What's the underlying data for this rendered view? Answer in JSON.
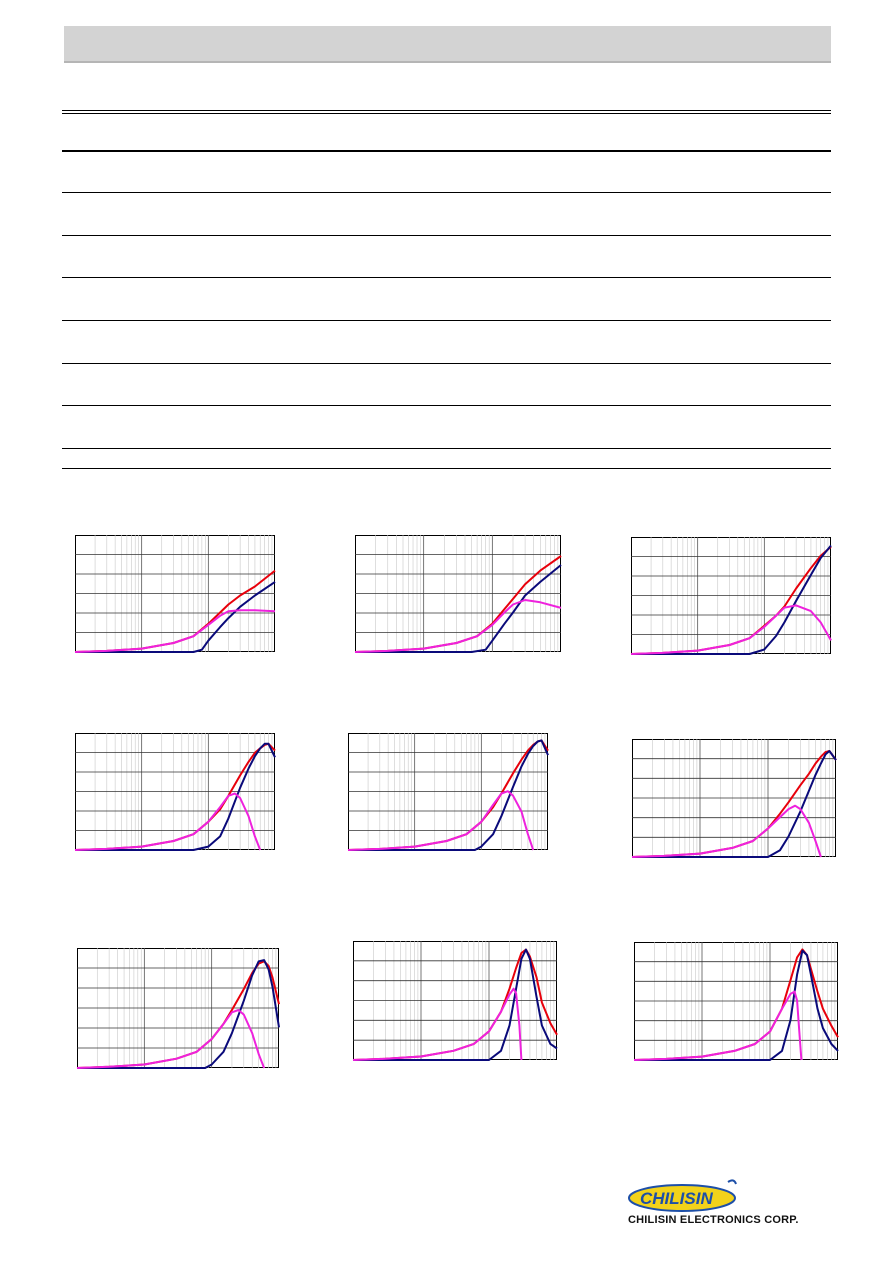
{
  "brand": {
    "logo_text": "CHILISIN",
    "company_name": "CHILISIN ELECTRONICS CORP.",
    "colors": {
      "blue": "#1d4fa8",
      "yellow": "#f2d21a"
    }
  },
  "series_colors": {
    "Z": "#e8000b",
    "R": "#0a0a7a",
    "X": "#ee22dd"
  },
  "chart_data": [
    {
      "type": "line",
      "xscale": "log",
      "xlim": [
        1,
        1000
      ],
      "ylim": [
        0,
        100
      ],
      "series": [
        {
          "color_key": "Z",
          "x": [
            1,
            3,
            10,
            30,
            60,
            100,
            150,
            200,
            300,
            500,
            1000
          ],
          "y": [
            0,
            1,
            3,
            8,
            14,
            25,
            35,
            42,
            50,
            58,
            72
          ]
        },
        {
          "color_key": "R",
          "x": [
            1,
            40,
            60,
            80,
            100,
            150,
            200,
            300,
            500,
            1000
          ],
          "y": [
            0,
            0,
            0,
            2,
            10,
            22,
            30,
            40,
            50,
            62
          ]
        },
        {
          "color_key": "X",
          "x": [
            1,
            3,
            10,
            30,
            60,
            100,
            150,
            200,
            300,
            500,
            1000
          ],
          "y": [
            0,
            1,
            3,
            8,
            14,
            24,
            32,
            36,
            37,
            37,
            36
          ]
        }
      ]
    },
    {
      "type": "line",
      "xscale": "log",
      "xlim": [
        1,
        1000
      ],
      "ylim": [
        0,
        100
      ],
      "series": [
        {
          "color_key": "Z",
          "x": [
            1,
            3,
            10,
            30,
            60,
            100,
            150,
            200,
            300,
            500,
            1000
          ],
          "y": [
            0,
            1,
            3,
            8,
            14,
            25,
            38,
            47,
            60,
            72,
            85
          ]
        },
        {
          "color_key": "R",
          "x": [
            1,
            50,
            80,
            100,
            150,
            200,
            300,
            500,
            1000
          ],
          "y": [
            0,
            0,
            2,
            10,
            25,
            35,
            50,
            62,
            77
          ]
        },
        {
          "color_key": "X",
          "x": [
            1,
            3,
            10,
            30,
            60,
            100,
            150,
            200,
            300,
            500,
            1000
          ],
          "y": [
            0,
            1,
            3,
            8,
            14,
            24,
            35,
            42,
            46,
            44,
            39
          ]
        }
      ]
    },
    {
      "type": "line",
      "xscale": "log",
      "xlim": [
        1,
        1000
      ],
      "ylim": [
        0,
        100
      ],
      "series": [
        {
          "color_key": "Z",
          "x": [
            1,
            3,
            10,
            30,
            60,
            100,
            150,
            200,
            300,
            500,
            700,
            1000
          ],
          "y": [
            0,
            1,
            3,
            8,
            14,
            25,
            34,
            42,
            58,
            76,
            87,
            95
          ]
        },
        {
          "color_key": "R",
          "x": [
            1,
            60,
            100,
            150,
            200,
            300,
            500,
            700,
            1000
          ],
          "y": [
            0,
            0,
            4,
            16,
            28,
            47,
            70,
            85,
            96
          ]
        },
        {
          "color_key": "X",
          "x": [
            1,
            3,
            10,
            30,
            60,
            100,
            150,
            200,
            300,
            500,
            700,
            1000
          ],
          "y": [
            0,
            1,
            3,
            8,
            14,
            24,
            34,
            41,
            43,
            38,
            28,
            12
          ]
        }
      ]
    },
    {
      "type": "line",
      "xscale": "log",
      "xlim": [
        1,
        1000
      ],
      "ylim": [
        0,
        100
      ],
      "series": [
        {
          "color_key": "Z",
          "x": [
            1,
            3,
            10,
            30,
            60,
            100,
            150,
            200,
            300,
            400,
            500,
            600,
            700,
            800,
            1000
          ],
          "y": [
            0,
            1,
            3,
            8,
            14,
            25,
            36,
            48,
            66,
            78,
            86,
            90,
            93,
            94,
            88
          ]
        },
        {
          "color_key": "R",
          "x": [
            1,
            60,
            100,
            150,
            200,
            300,
            400,
            500,
            600,
            700,
            800,
            1000
          ],
          "y": [
            0,
            0,
            3,
            12,
            28,
            55,
            72,
            83,
            90,
            94,
            94,
            82
          ]
        },
        {
          "color_key": "X",
          "x": [
            1,
            3,
            10,
            30,
            60,
            100,
            150,
            200,
            250,
            300,
            400,
            500,
            600
          ],
          "y": [
            0,
            1,
            3,
            8,
            14,
            25,
            38,
            48,
            50,
            46,
            30,
            12,
            0
          ]
        }
      ]
    },
    {
      "type": "line",
      "xscale": "log",
      "xlim": [
        1,
        1000
      ],
      "ylim": [
        0,
        100
      ],
      "series": [
        {
          "color_key": "Z",
          "x": [
            1,
            3,
            10,
            30,
            60,
            100,
            150,
            200,
            300,
            400,
            500,
            600,
            700,
            800,
            1000
          ],
          "y": [
            0,
            1,
            3,
            8,
            14,
            25,
            38,
            50,
            68,
            80,
            88,
            93,
            96,
            97,
            88
          ]
        },
        {
          "color_key": "R",
          "x": [
            1,
            80,
            100,
            150,
            200,
            300,
            400,
            500,
            600,
            700,
            800,
            1000
          ],
          "y": [
            0,
            0,
            3,
            14,
            30,
            56,
            74,
            85,
            92,
            96,
            97,
            84
          ]
        },
        {
          "color_key": "X",
          "x": [
            1,
            3,
            10,
            30,
            60,
            100,
            150,
            200,
            250,
            300,
            400,
            500,
            600
          ],
          "y": [
            0,
            1,
            3,
            8,
            14,
            25,
            40,
            50,
            52,
            48,
            34,
            14,
            0
          ]
        }
      ]
    },
    {
      "type": "line",
      "xscale": "log",
      "xlim": [
        1,
        1000
      ],
      "ylim": [
        0,
        100
      ],
      "series": [
        {
          "color_key": "Z",
          "x": [
            1,
            3,
            10,
            30,
            60,
            100,
            150,
            200,
            300,
            400,
            500,
            600,
            700,
            800,
            1000
          ],
          "y": [
            0,
            1,
            3,
            8,
            14,
            25,
            38,
            48,
            63,
            73,
            82,
            88,
            92,
            93,
            85
          ]
        },
        {
          "color_key": "R",
          "x": [
            1,
            100,
            150,
            200,
            300,
            400,
            500,
            600,
            700,
            800,
            1000
          ],
          "y": [
            0,
            0,
            6,
            18,
            40,
            58,
            72,
            82,
            90,
            93,
            85
          ]
        },
        {
          "color_key": "X",
          "x": [
            1,
            3,
            10,
            30,
            60,
            100,
            150,
            200,
            250,
            300,
            400,
            500,
            600
          ],
          "y": [
            0,
            1,
            3,
            8,
            14,
            25,
            35,
            42,
            45,
            42,
            30,
            14,
            0
          ]
        }
      ]
    },
    {
      "type": "line",
      "xscale": "log",
      "xlim": [
        1,
        1000
      ],
      "ylim": [
        0,
        100
      ],
      "series": [
        {
          "color_key": "Z",
          "x": [
            1,
            3,
            10,
            30,
            60,
            100,
            150,
            200,
            300,
            400,
            500,
            600,
            700,
            800,
            1000
          ],
          "y": [
            0,
            1,
            3,
            8,
            14,
            25,
            38,
            50,
            68,
            82,
            90,
            92,
            88,
            78,
            55
          ]
        },
        {
          "color_key": "R",
          "x": [
            1,
            80,
            100,
            150,
            200,
            300,
            400,
            500,
            600,
            700,
            800,
            1000
          ],
          "y": [
            0,
            0,
            3,
            14,
            30,
            58,
            80,
            92,
            93,
            85,
            70,
            35
          ]
        },
        {
          "color_key": "X",
          "x": [
            1,
            3,
            10,
            30,
            60,
            100,
            150,
            200,
            250,
            300,
            400,
            500,
            600
          ],
          "y": [
            0,
            1,
            3,
            8,
            14,
            25,
            38,
            48,
            50,
            46,
            30,
            12,
            0
          ]
        }
      ]
    },
    {
      "type": "line",
      "xscale": "log",
      "xlim": [
        1,
        1000
      ],
      "ylim": [
        0,
        100
      ],
      "series": [
        {
          "color_key": "Z",
          "x": [
            1,
            3,
            10,
            30,
            60,
            100,
            150,
            200,
            250,
            300,
            350,
            400,
            500,
            600,
            800,
            1000
          ],
          "y": [
            0,
            1,
            3,
            8,
            14,
            25,
            42,
            62,
            80,
            93,
            96,
            90,
            72,
            50,
            32,
            22
          ]
        },
        {
          "color_key": "R",
          "x": [
            1,
            100,
            150,
            200,
            250,
            300,
            350,
            400,
            500,
            600,
            800,
            1000
          ],
          "y": [
            0,
            0,
            8,
            30,
            62,
            88,
            96,
            88,
            55,
            30,
            14,
            10
          ]
        },
        {
          "color_key": "X",
          "x": [
            1,
            3,
            10,
            30,
            60,
            100,
            150,
            200,
            230,
            250,
            280,
            300
          ],
          "y": [
            0,
            1,
            3,
            8,
            14,
            25,
            42,
            57,
            62,
            58,
            30,
            0
          ]
        }
      ]
    },
    {
      "type": "line",
      "xscale": "log",
      "xlim": [
        1,
        1000
      ],
      "ylim": [
        0,
        100
      ],
      "series": [
        {
          "color_key": "Z",
          "x": [
            1,
            3,
            10,
            30,
            60,
            100,
            150,
            200,
            250,
            300,
            350,
            400,
            500,
            600,
            800,
            1000
          ],
          "y": [
            0,
            1,
            3,
            8,
            14,
            25,
            45,
            70,
            90,
            97,
            92,
            80,
            60,
            45,
            30,
            20
          ]
        },
        {
          "color_key": "R",
          "x": [
            1,
            100,
            150,
            200,
            250,
            300,
            350,
            400,
            500,
            600,
            800,
            1000
          ],
          "y": [
            0,
            0,
            8,
            35,
            75,
            96,
            92,
            75,
            45,
            28,
            14,
            8
          ]
        },
        {
          "color_key": "X",
          "x": [
            1,
            3,
            10,
            30,
            60,
            100,
            150,
            200,
            230,
            250,
            270,
            290
          ],
          "y": [
            0,
            1,
            3,
            8,
            14,
            25,
            45,
            58,
            60,
            52,
            25,
            0
          ]
        }
      ]
    }
  ]
}
